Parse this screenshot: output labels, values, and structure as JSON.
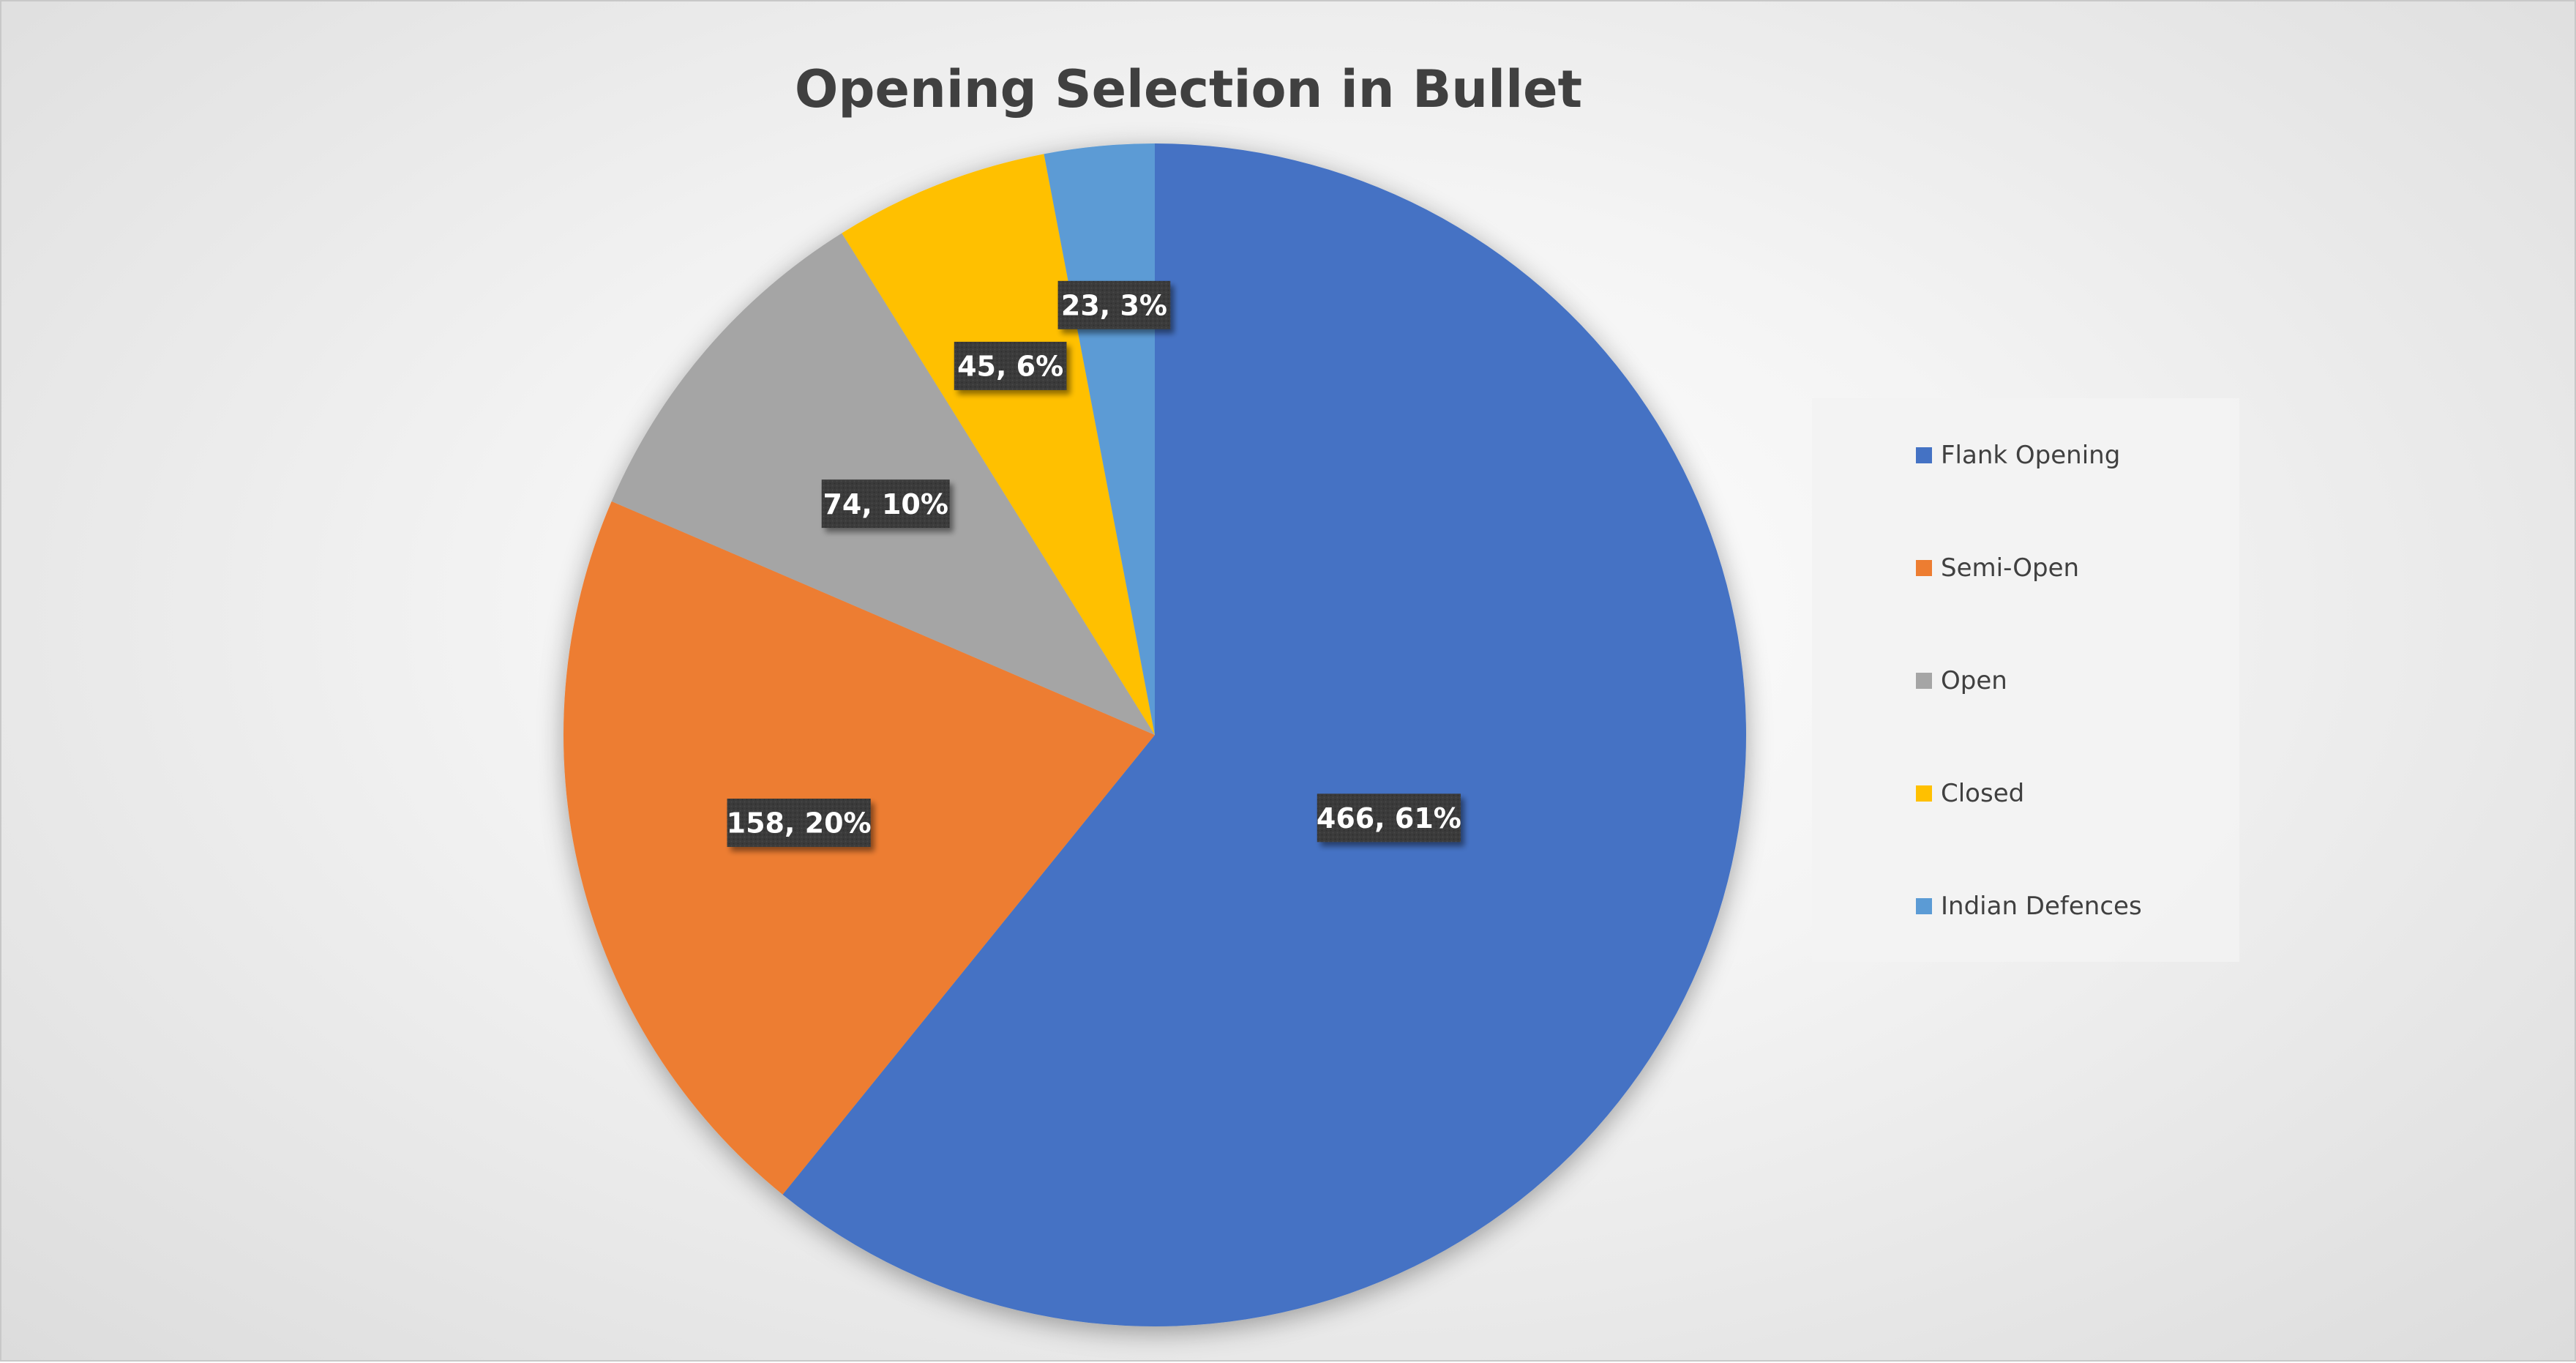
{
  "chart_data": {
    "type": "pie",
    "title": "Opening Selection in Bullet",
    "categories": [
      "Flank Opening",
      "Semi-Open",
      "Open",
      "Closed",
      "Indian Defences"
    ],
    "values": [
      466,
      158,
      74,
      45,
      23
    ],
    "percent_labels": [
      "61%",
      "20%",
      "10%",
      "6%",
      "3%"
    ],
    "data_labels": [
      "466, 61%",
      "158, 20%",
      "74, 10%",
      "45, 6%",
      "23, 3%"
    ],
    "colors": [
      "#4472C4",
      "#ED7D31",
      "#A5A5A5",
      "#FFC000",
      "#5B9BD5"
    ],
    "start_angle": "12 o'clock",
    "direction": "clockwise",
    "legend": "right"
  }
}
